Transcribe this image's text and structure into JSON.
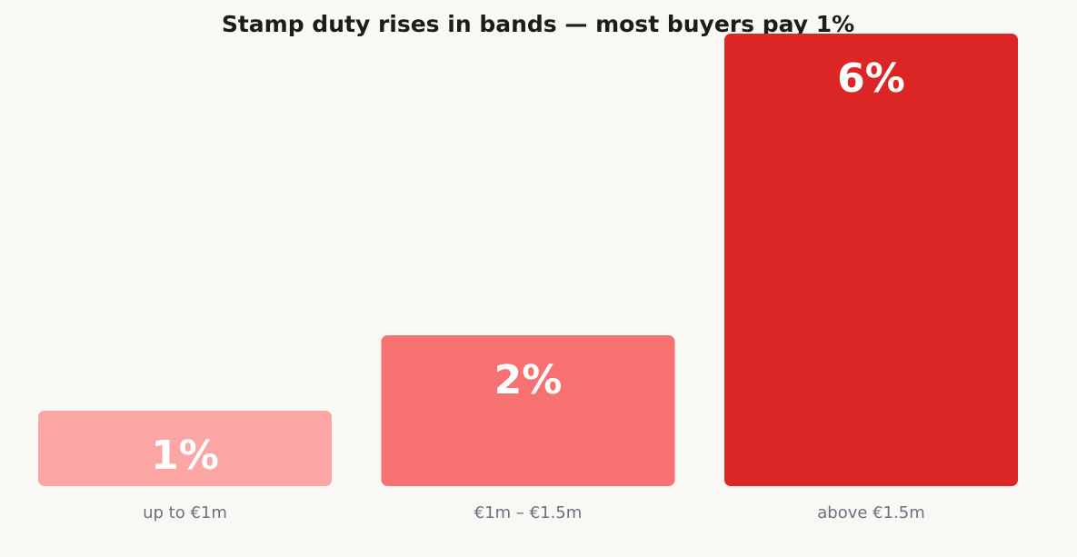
{
  "chart_data": {
    "type": "bar",
    "title": "Stamp duty rises in bands — most buyers pay 1%",
    "xlabel": "",
    "ylabel": "",
    "categories": [
      "up to €1m",
      "€1m – €1.5m",
      "above €1.5m"
    ],
    "values": [
      1,
      2,
      6
    ],
    "data_labels": [
      "1%",
      "2%",
      "6%"
    ],
    "unit": "%",
    "ylim": [
      0,
      6
    ],
    "grid": false,
    "legend": "none",
    "colors": [
      "#fca5a5",
      "#f87171",
      "#dc2626"
    ]
  }
}
